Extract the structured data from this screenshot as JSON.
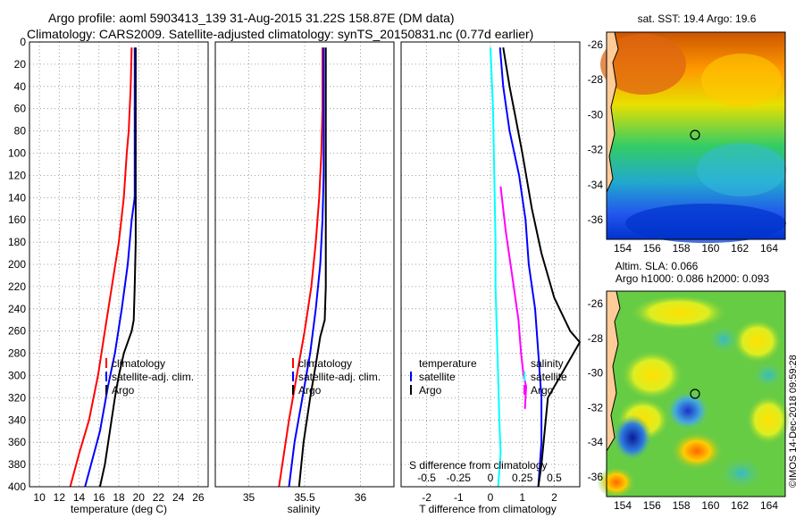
{
  "title_line1": "Argo profile: aoml 5903413_139 31-Aug-2015 31.22S 158.87E (DM data)",
  "title_line2": "Climatology: CARS2009. Satellite-adjusted climatology: synTS_20150831.nc (0.77d earlier)",
  "credit": "©IMOS 14-Dec-2018 09:59:28",
  "colors": {
    "climatology": "#ff0000",
    "satellite": "#0000ff",
    "argo": "#000000",
    "salinity_diff": "#00ffff",
    "satellite_s": "#00ffff",
    "argo_s": "#ff00ff"
  },
  "chart_data": [
    {
      "id": "temperature",
      "type": "line",
      "xlabel": "temperature (deg C)",
      "ylabel": "",
      "xlim": [
        9,
        27
      ],
      "ylim": [
        400,
        0
      ],
      "xticks": [
        10,
        12,
        14,
        16,
        18,
        20,
        22,
        24,
        26
      ],
      "yticks": [
        0,
        20,
        40,
        60,
        80,
        100,
        120,
        140,
        160,
        180,
        200,
        220,
        240,
        260,
        280,
        300,
        320,
        340,
        360,
        380,
        400
      ],
      "legend": [
        "climatology",
        "satellite-adj. clim.",
        "Argo"
      ],
      "series": [
        {
          "name": "climatology",
          "color": "#ff0000",
          "points": [
            [
              19.3,
              5
            ],
            [
              19.2,
              40
            ],
            [
              19.0,
              80
            ],
            [
              18.8,
              100
            ],
            [
              18.5,
              140
            ],
            [
              18.0,
              180
            ],
            [
              17.3,
              220
            ],
            [
              16.6,
              260
            ],
            [
              15.9,
              300
            ],
            [
              15.0,
              340
            ],
            [
              14.0,
              370
            ],
            [
              13.1,
              400
            ]
          ]
        },
        {
          "name": "satellite-adj. clim.",
          "color": "#0000ff",
          "points": [
            [
              19.6,
              5
            ],
            [
              19.6,
              60
            ],
            [
              19.6,
              100
            ],
            [
              19.6,
              140
            ],
            [
              19.3,
              160
            ],
            [
              18.9,
              200
            ],
            [
              18.3,
              240
            ],
            [
              17.6,
              280
            ],
            [
              16.9,
              310
            ],
            [
              16.1,
              350
            ],
            [
              15.2,
              380
            ],
            [
              14.6,
              400
            ]
          ]
        },
        {
          "name": "Argo",
          "color": "#000000",
          "points": [
            [
              19.7,
              5
            ],
            [
              19.7,
              60
            ],
            [
              19.7,
              120
            ],
            [
              19.7,
              180
            ],
            [
              19.6,
              220
            ],
            [
              19.5,
              250
            ],
            [
              19.3,
              260
            ],
            [
              18.5,
              280
            ],
            [
              18.0,
              300
            ],
            [
              17.6,
              320
            ],
            [
              17.1,
              350
            ],
            [
              16.6,
              380
            ],
            [
              16.1,
              400
            ]
          ]
        }
      ]
    },
    {
      "id": "salinity",
      "type": "line",
      "xlabel": "salinity",
      "ylabel": "",
      "xlim": [
        34.7,
        36.3
      ],
      "ylim": [
        400,
        0
      ],
      "xticks": [
        35,
        35.5,
        36
      ],
      "legend": [
        "climatology",
        "satellite-adj. clim.",
        "Argo"
      ],
      "series": [
        {
          "name": "climatology",
          "color": "#ff0000",
          "points": [
            [
              35.66,
              5
            ],
            [
              35.66,
              60
            ],
            [
              35.65,
              100
            ],
            [
              35.63,
              140
            ],
            [
              35.6,
              180
            ],
            [
              35.56,
              220
            ],
            [
              35.5,
              260
            ],
            [
              35.43,
              300
            ],
            [
              35.36,
              340
            ],
            [
              35.3,
              380
            ],
            [
              35.27,
              400
            ]
          ]
        },
        {
          "name": "satellite-adj. clim.",
          "color": "#0000ff",
          "points": [
            [
              35.67,
              5
            ],
            [
              35.67,
              60
            ],
            [
              35.67,
              120
            ],
            [
              35.66,
              160
            ],
            [
              35.64,
              200
            ],
            [
              35.6,
              240
            ],
            [
              35.55,
              280
            ],
            [
              35.48,
              320
            ],
            [
              35.41,
              360
            ],
            [
              35.36,
              400
            ]
          ]
        },
        {
          "name": "Argo",
          "color": "#000000",
          "points": [
            [
              35.69,
              5
            ],
            [
              35.69,
              60
            ],
            [
              35.69,
              120
            ],
            [
              35.69,
              180
            ],
            [
              35.69,
              220
            ],
            [
              35.68,
              250
            ],
            [
              35.64,
              265
            ],
            [
              35.6,
              290
            ],
            [
              35.55,
              320
            ],
            [
              35.49,
              360
            ],
            [
              35.45,
              400
            ]
          ]
        }
      ]
    },
    {
      "id": "difference",
      "type": "line",
      "xlabel": "T difference from climatology",
      "top_label": "S difference from climatology",
      "xlim": [
        -2.8,
        2.8
      ],
      "ylim": [
        400,
        0
      ],
      "xticks": [
        -2,
        -1,
        0,
        1,
        2
      ],
      "xticks_s": [
        -0.5,
        -0.25,
        0,
        0.25,
        0.5
      ],
      "legend_t_title": "temperature",
      "legend_s_title": "salinity",
      "legend_t": [
        "satellite",
        "Argo"
      ],
      "legend_s": [
        "satellite",
        "Argo"
      ],
      "series": [
        {
          "name": "T satellite",
          "color": "#0000ff",
          "points": [
            [
              0.3,
              5
            ],
            [
              0.4,
              40
            ],
            [
              0.6,
              80
            ],
            [
              0.9,
              120
            ],
            [
              1.1,
              160
            ],
            [
              1.2,
              200
            ],
            [
              1.4,
              240
            ],
            [
              1.5,
              280
            ],
            [
              1.6,
              320
            ],
            [
              1.6,
              360
            ],
            [
              1.5,
              400
            ]
          ]
        },
        {
          "name": "T Argo",
          "color": "#000000",
          "points": [
            [
              0.4,
              5
            ],
            [
              0.6,
              40
            ],
            [
              0.8,
              70
            ],
            [
              1.0,
              100
            ],
            [
              1.3,
              150
            ],
            [
              1.6,
              190
            ],
            [
              2.0,
              230
            ],
            [
              2.5,
              260
            ],
            [
              2.8,
              270
            ],
            [
              2.4,
              290
            ],
            [
              1.8,
              320
            ],
            [
              1.7,
              350
            ],
            [
              1.6,
              380
            ],
            [
              1.5,
              400
            ]
          ]
        },
        {
          "name": "S satellite",
          "color": "#00ffff",
          "points": [
            [
              0.0,
              5
            ],
            [
              0.02,
              60
            ],
            [
              0.03,
              120
            ],
            [
              0.04,
              180
            ],
            [
              0.04,
              220
            ],
            [
              0.05,
              260
            ],
            [
              0.06,
              300
            ],
            [
              0.07,
              340
            ],
            [
              0.08,
              370
            ],
            [
              0.06,
              400
            ]
          ]
        },
        {
          "name": "S Argo",
          "color": "#ff00ff",
          "points": [
            [
              0.08,
              130
            ],
            [
              0.12,
              170
            ],
            [
              0.17,
              210
            ],
            [
              0.22,
              250
            ],
            [
              0.24,
              280
            ],
            [
              0.26,
              300
            ],
            [
              0.28,
              310
            ],
            [
              0.27,
              330
            ]
          ]
        }
      ]
    }
  ],
  "maps": {
    "sst": {
      "title": "sat. SST: 19.4 Argo: 19.6",
      "xticks": [
        "154",
        "156",
        "158",
        "160",
        "162",
        "164"
      ],
      "yticks": [
        "-26",
        "-28",
        "-30",
        "-32",
        "-34",
        "-36"
      ]
    },
    "sla": {
      "title1": "Altim. SLA: 0.066",
      "title2": "Argo h1000: 0.086 h2000: 0.093",
      "xticks": [
        "154",
        "156",
        "158",
        "160",
        "162",
        "164"
      ],
      "yticks": [
        "-26",
        "-28",
        "-30",
        "-32",
        "-34",
        "-36"
      ]
    }
  }
}
